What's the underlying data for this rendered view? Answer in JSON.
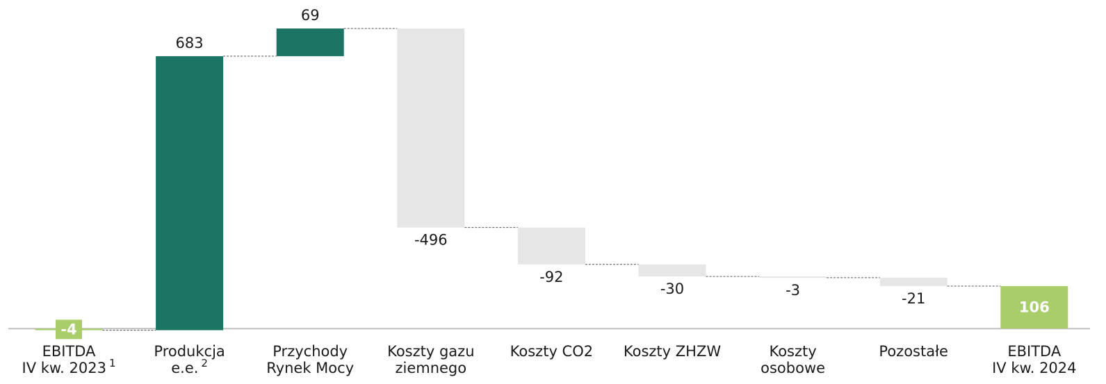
{
  "chart_data": {
    "type": "waterfall",
    "categories": [
      [
        "EBITDA",
        "IV kw. 2023"
      ],
      [
        "Produkcja",
        "e.e."
      ],
      [
        "Przychody",
        "Rynek Mocy"
      ],
      [
        "Koszty gazu",
        "ziemnego"
      ],
      [
        "Koszty CO2"
      ],
      [
        "Koszty ZHZW"
      ],
      [
        "Koszty",
        "osobowe"
      ],
      [
        "Pozostałe"
      ],
      [
        "EBITDA",
        "IV kw. 2024"
      ]
    ],
    "category_notes": [
      "1",
      "2",
      null,
      null,
      null,
      null,
      null,
      null,
      null
    ],
    "values": [
      -4,
      683,
      69,
      -496,
      -92,
      -30,
      -3,
      -21,
      106
    ],
    "is_total": [
      true,
      false,
      false,
      false,
      false,
      false,
      false,
      false,
      true
    ],
    "colors": {
      "total": "#a9cd6b",
      "increase": "#1b7464",
      "decrease": "#e6e6e6"
    },
    "ylim": [
      -100,
      800
    ]
  }
}
